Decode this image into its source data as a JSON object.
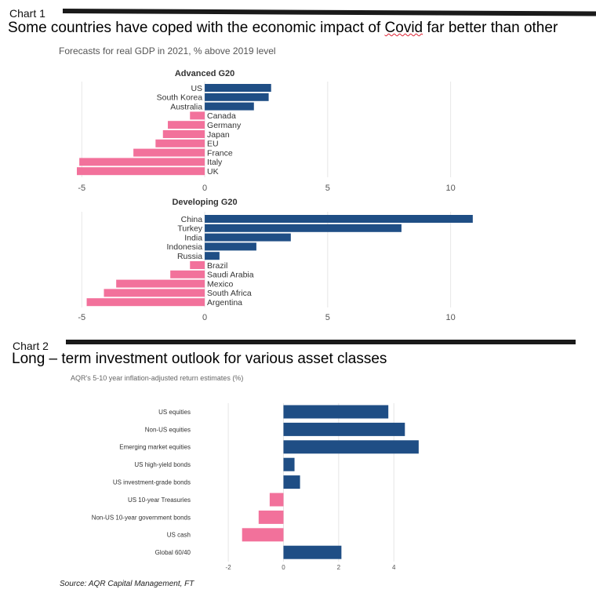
{
  "chart1": {
    "label": "Chart 1",
    "headline_before": "Some countries have coped with the economic impact of ",
    "headline_covid": "Covid",
    "headline_after": " far better than other",
    "subtitle": "Forecasts for real GDP in 2021, % above 2019 level"
  },
  "chart2": {
    "label": "Chart 2",
    "headline": "Long – term investment outlook for various asset classes",
    "subtitle": "AQR's 5-10 year inflation-adjusted return estimates (%)",
    "source": "Source: AQR Capital Management, FT"
  },
  "colors": {
    "positive": "#1f4e85",
    "negative": "#f2719b",
    "grid": "#e6e6e6",
    "rule": "#1a1a1a"
  },
  "chart_data": [
    {
      "type": "bar",
      "orientation": "horizontal",
      "title": "Advanced G20",
      "categories": [
        "US",
        "South Korea",
        "Australia",
        "Canada",
        "Germany",
        "Japan",
        "EU",
        "France",
        "Italy",
        "UK"
      ],
      "values": [
        2.7,
        2.6,
        2.0,
        -0.6,
        -1.5,
        -1.7,
        -2.0,
        -2.9,
        -5.1,
        -5.2
      ],
      "xlim": [
        -5.2,
        11
      ],
      "xticks": [
        -5,
        0,
        5,
        10
      ],
      "grid": true
    },
    {
      "type": "bar",
      "orientation": "horizontal",
      "title": "Developing G20",
      "categories": [
        "China",
        "Turkey",
        "India",
        "Indonesia",
        "Russia",
        "Brazil",
        "Saudi Arabia",
        "Mexico",
        "South Africa",
        "Argentina"
      ],
      "values": [
        10.9,
        8.0,
        3.5,
        2.1,
        0.6,
        -0.6,
        -1.4,
        -3.6,
        -4.1,
        -4.8
      ],
      "xlim": [
        -5.2,
        11
      ],
      "xticks": [
        -5,
        0,
        5,
        10
      ],
      "grid": true
    },
    {
      "type": "bar",
      "orientation": "horizontal",
      "categories": [
        "US equities",
        "Non-US equities",
        "Emerging market equities",
        "US high-yield bonds",
        "US investment-grade bonds",
        "US 10-year Treasuries",
        "Non-US 10-year government bonds",
        "US cash",
        "Global 60/40"
      ],
      "values": [
        3.8,
        4.4,
        4.9,
        0.4,
        0.6,
        -0.5,
        -0.9,
        -1.5,
        2.1
      ],
      "xlim": [
        -2.6,
        5.5
      ],
      "xticks": [
        -2,
        0,
        2,
        4
      ],
      "grid": true
    }
  ]
}
